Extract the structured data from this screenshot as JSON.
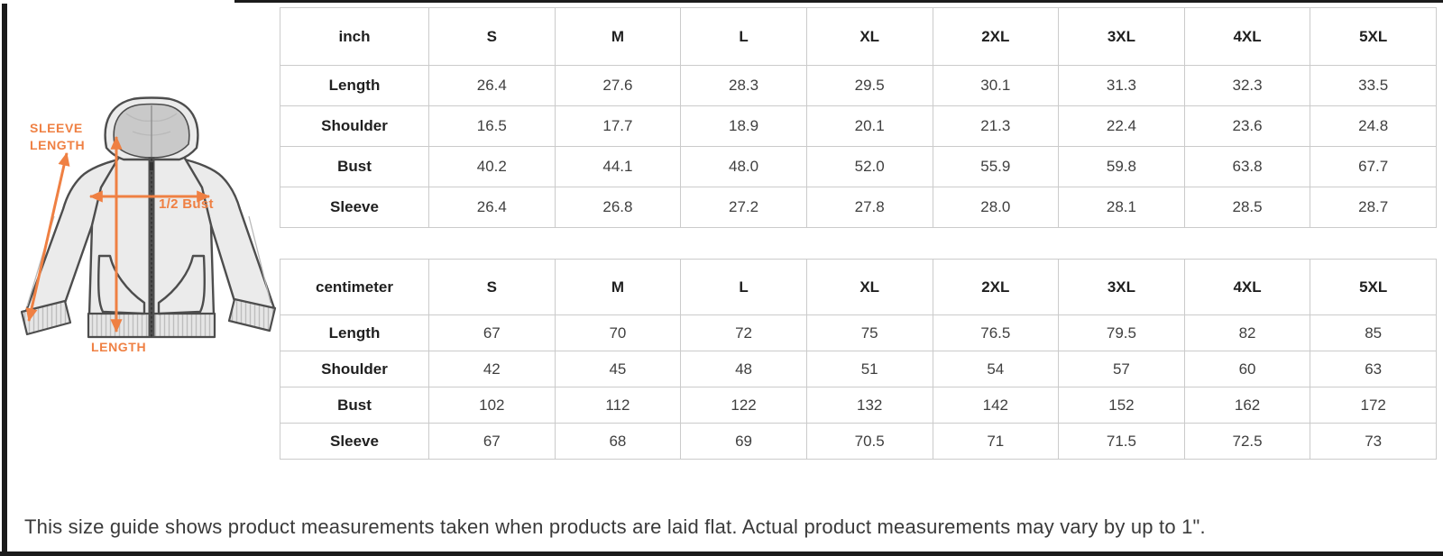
{
  "colors": {
    "accent_orange": "#EF8043",
    "table_border": "#cbcbcb",
    "header_text": "#1f1f1f",
    "cell_text": "#3f3f3f",
    "note_text": "#3a3a3a",
    "frame_black": "#1b1b1b",
    "hoodie_fill": "#ebebeb",
    "hoodie_outline": "#4d4d4d",
    "hood_inner_gray": "#c9c9c9"
  },
  "diagram": {
    "sleeve_length_label_line1": "SLEEVE",
    "sleeve_length_label_line2": "LENGTH",
    "half_bust_label": "1/2 Bust",
    "length_label": "LENGTH"
  },
  "tables": [
    {
      "unit_header": "inch",
      "size_headers": [
        "S",
        "M",
        "L",
        "XL",
        "2XL",
        "3XL",
        "4XL",
        "5XL"
      ],
      "rows": [
        {
          "label": "Length",
          "values": [
            "26.4",
            "27.6",
            "28.3",
            "29.5",
            "30.1",
            "31.3",
            "32.3",
            "33.5"
          ]
        },
        {
          "label": "Shoulder",
          "values": [
            "16.5",
            "17.7",
            "18.9",
            "20.1",
            "21.3",
            "22.4",
            "23.6",
            "24.8"
          ]
        },
        {
          "label": "Bust",
          "values": [
            "40.2",
            "44.1",
            "48.0",
            "52.0",
            "55.9",
            "59.8",
            "63.8",
            "67.7"
          ]
        },
        {
          "label": "Sleeve",
          "values": [
            "26.4",
            "26.8",
            "27.2",
            "27.8",
            "28.0",
            "28.1",
            "28.5",
            "28.7"
          ]
        }
      ]
    },
    {
      "unit_header": "centimeter",
      "size_headers": [
        "S",
        "M",
        "L",
        "XL",
        "2XL",
        "3XL",
        "4XL",
        "5XL"
      ],
      "rows": [
        {
          "label": "Length",
          "values": [
            "67",
            "70",
            "72",
            "75",
            "76.5",
            "79.5",
            "82",
            "85"
          ]
        },
        {
          "label": "Shoulder",
          "values": [
            "42",
            "45",
            "48",
            "51",
            "54",
            "57",
            "60",
            "63"
          ]
        },
        {
          "label": "Bust",
          "values": [
            "102",
            "112",
            "122",
            "132",
            "142",
            "152",
            "162",
            "172"
          ]
        },
        {
          "label": "Sleeve",
          "values": [
            "67",
            "68",
            "69",
            "70.5",
            "71",
            "71.5",
            "72.5",
            "73"
          ]
        }
      ]
    }
  ],
  "note": "This size guide shows product measurements taken when products are laid flat. Actual product measurements may vary by up to 1\"."
}
